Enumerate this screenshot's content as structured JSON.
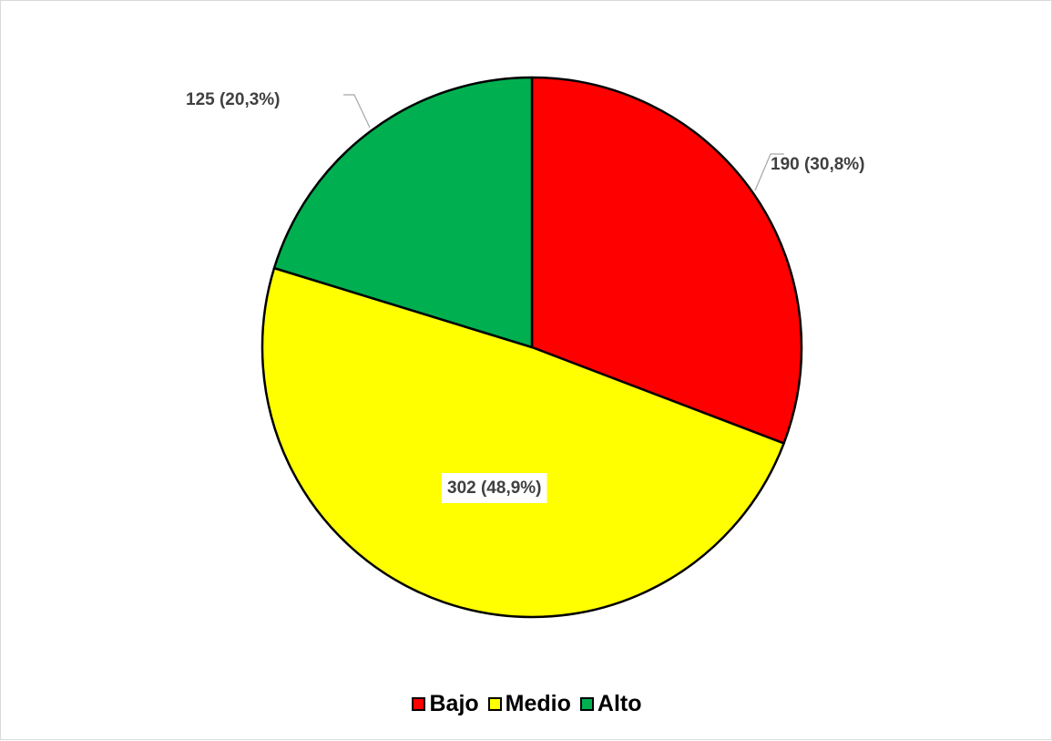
{
  "chart_data": {
    "type": "pie",
    "title": "",
    "slices": [
      {
        "name": "Bajo",
        "value": 190,
        "percent": 30.8,
        "label": "190 (30,8%)",
        "color": "#ff0000"
      },
      {
        "name": "Medio",
        "value": 302,
        "percent": 48.9,
        "label": "302 (48,9%)",
        "color": "#ffff00"
      },
      {
        "name": "Alto",
        "value": 125,
        "percent": 20.3,
        "label": "125 (20,3%)",
        "color": "#00b050"
      }
    ],
    "start_angle_deg": 0,
    "direction": "clockwise",
    "legend_placement": "bottom",
    "label_color": "#404040"
  }
}
